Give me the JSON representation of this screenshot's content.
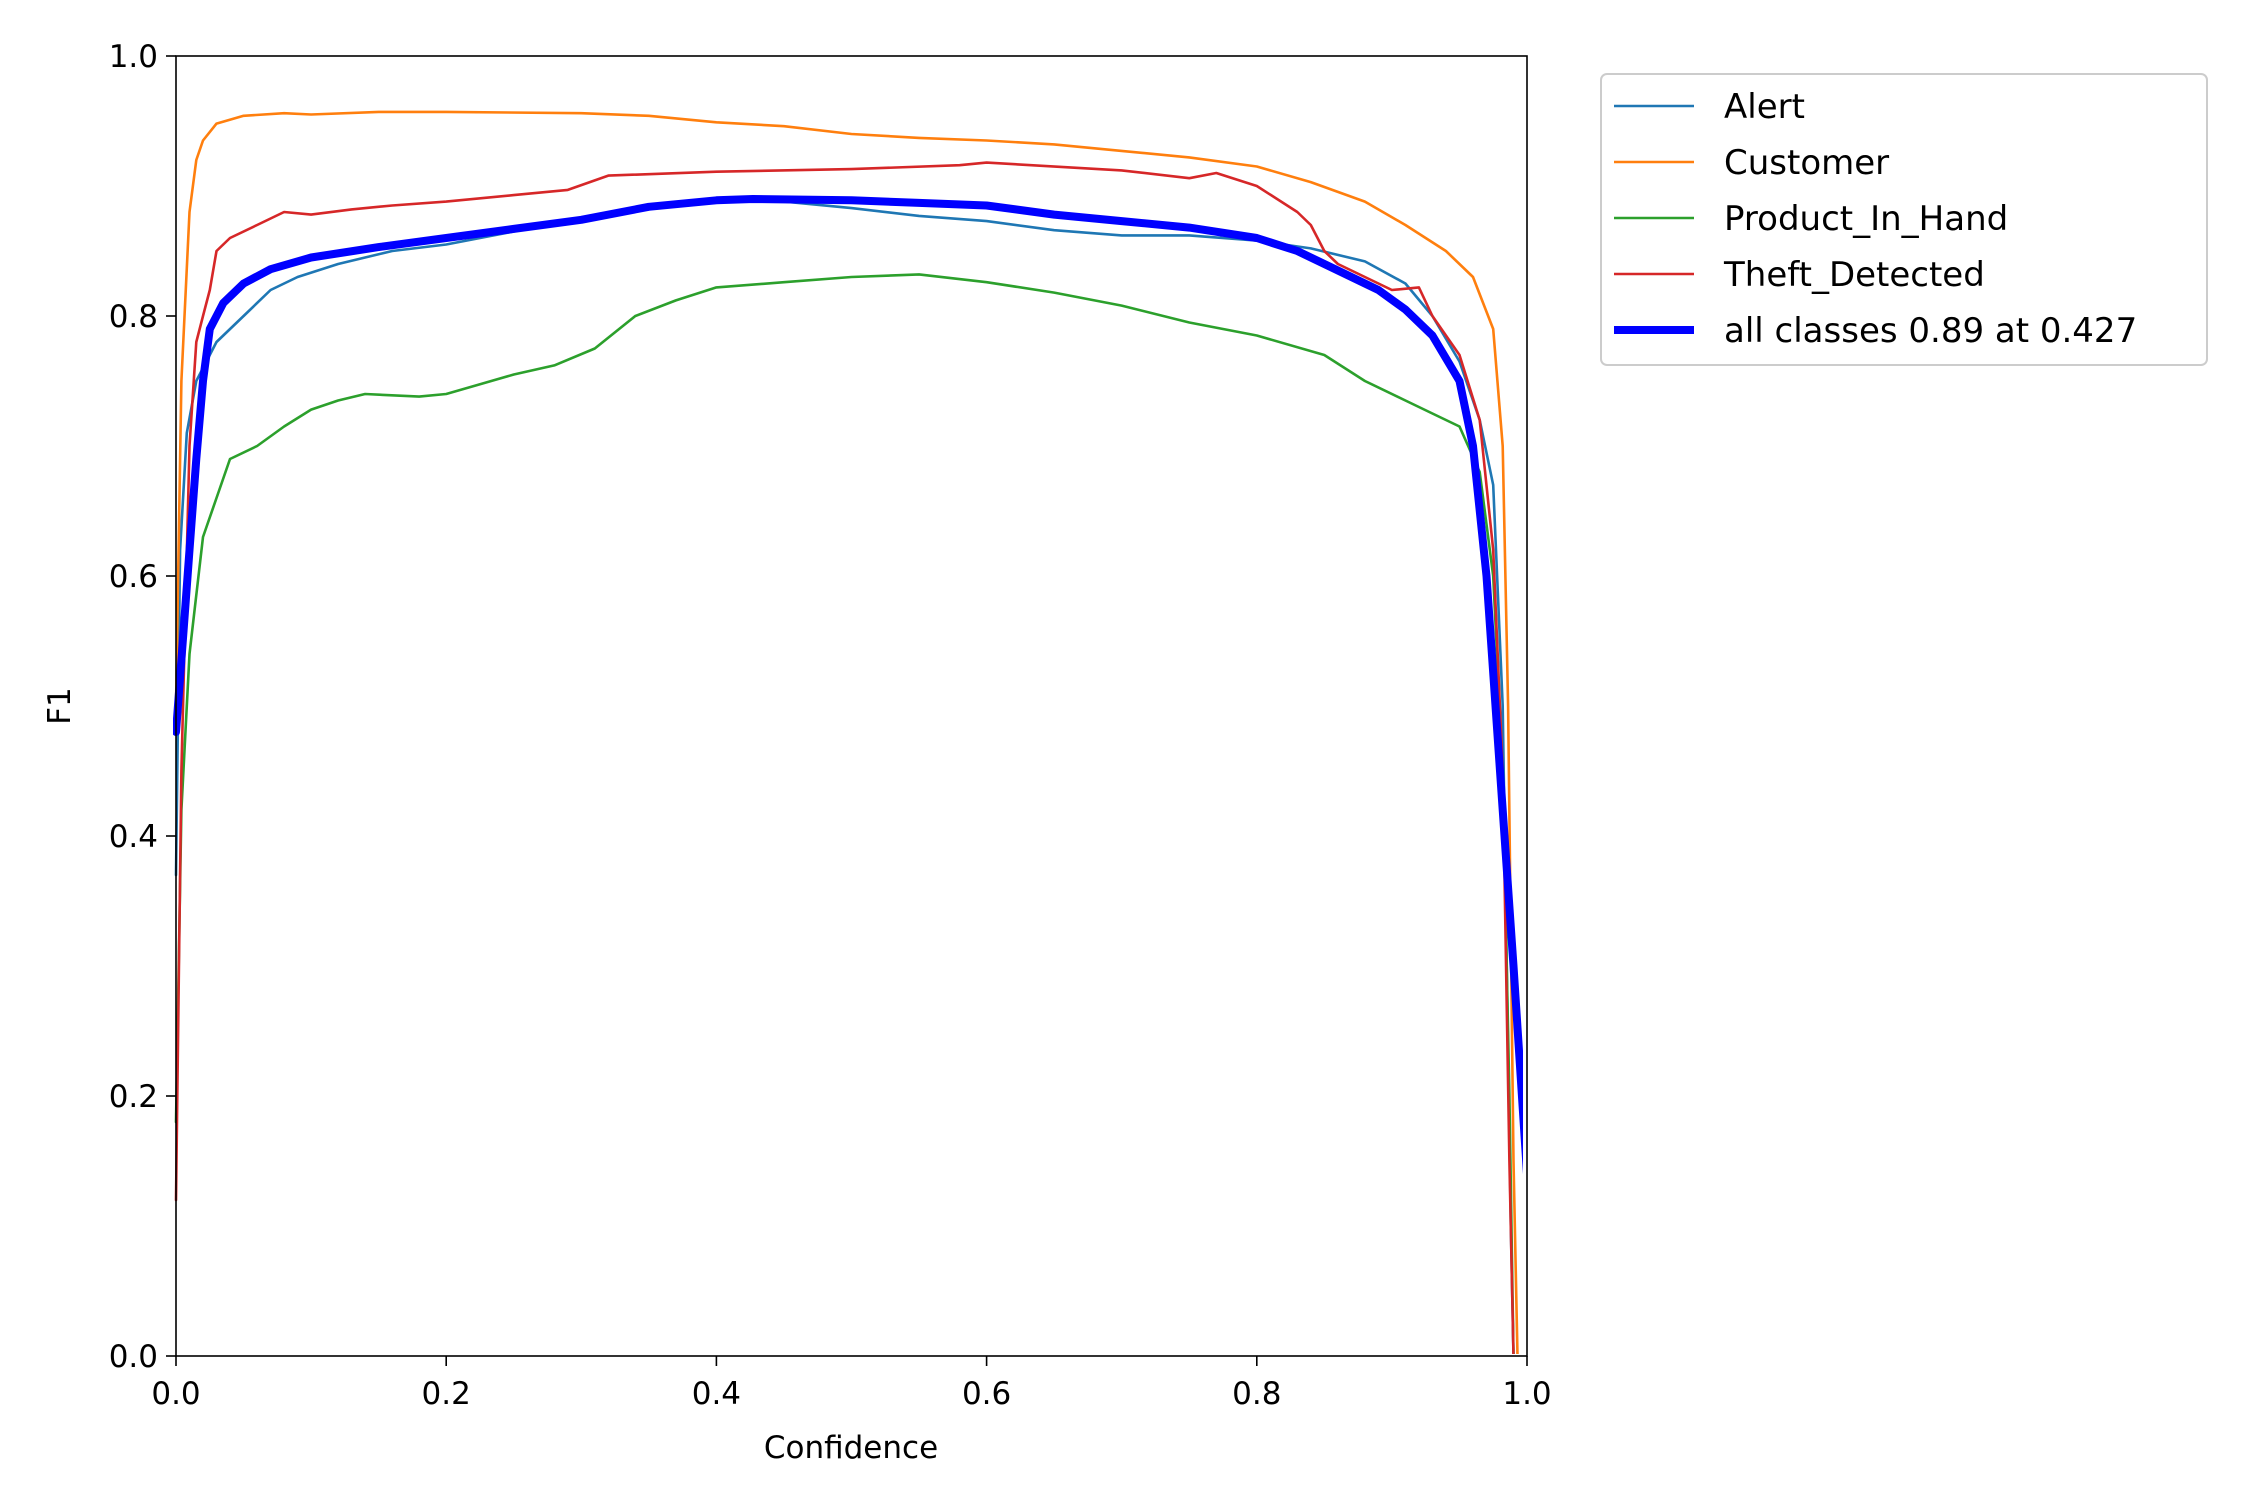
{
  "chart_data": {
    "type": "line",
    "xlabel": "Confidence",
    "ylabel": "F1",
    "xlim": [
      0,
      1
    ],
    "ylim": [
      0,
      1
    ],
    "xticks": [
      "0.0",
      "0.2",
      "0.4",
      "0.6",
      "0.8",
      "1.0"
    ],
    "yticks": [
      "0.0",
      "0.2",
      "0.4",
      "0.6",
      "0.8",
      "1.0"
    ],
    "legend_position": "outside-top-right",
    "grid": false,
    "series": [
      {
        "name": "Alert",
        "color": "#1f77b4",
        "width": "thin",
        "points": [
          [
            0,
            0.37
          ],
          [
            0.003,
            0.62
          ],
          [
            0.008,
            0.71
          ],
          [
            0.015,
            0.75
          ],
          [
            0.03,
            0.78
          ],
          [
            0.05,
            0.8
          ],
          [
            0.07,
            0.82
          ],
          [
            0.09,
            0.83
          ],
          [
            0.12,
            0.84
          ],
          [
            0.16,
            0.85
          ],
          [
            0.2,
            0.855
          ],
          [
            0.25,
            0.865
          ],
          [
            0.3,
            0.875
          ],
          [
            0.35,
            0.885
          ],
          [
            0.4,
            0.89
          ],
          [
            0.45,
            0.888
          ],
          [
            0.5,
            0.883
          ],
          [
            0.55,
            0.877
          ],
          [
            0.6,
            0.873
          ],
          [
            0.65,
            0.866
          ],
          [
            0.7,
            0.862
          ],
          [
            0.75,
            0.862
          ],
          [
            0.8,
            0.858
          ],
          [
            0.84,
            0.852
          ],
          [
            0.88,
            0.842
          ],
          [
            0.91,
            0.825
          ],
          [
            0.93,
            0.8
          ],
          [
            0.95,
            0.765
          ],
          [
            0.965,
            0.72
          ],
          [
            0.975,
            0.67
          ],
          [
            0.982,
            0.5
          ],
          [
            0.988,
            0.1
          ],
          [
            0.99,
            0
          ]
        ]
      },
      {
        "name": "Customer",
        "color": "#ff7f0e",
        "width": "thin",
        "points": [
          [
            0,
            0.5
          ],
          [
            0.004,
            0.75
          ],
          [
            0.01,
            0.88
          ],
          [
            0.015,
            0.92
          ],
          [
            0.02,
            0.935
          ],
          [
            0.03,
            0.948
          ],
          [
            0.05,
            0.954
          ],
          [
            0.08,
            0.956
          ],
          [
            0.1,
            0.955
          ],
          [
            0.15,
            0.957
          ],
          [
            0.2,
            0.957
          ],
          [
            0.3,
            0.956
          ],
          [
            0.35,
            0.954
          ],
          [
            0.4,
            0.949
          ],
          [
            0.45,
            0.946
          ],
          [
            0.5,
            0.94
          ],
          [
            0.55,
            0.937
          ],
          [
            0.6,
            0.935
          ],
          [
            0.65,
            0.932
          ],
          [
            0.7,
            0.927
          ],
          [
            0.75,
            0.922
          ],
          [
            0.8,
            0.915
          ],
          [
            0.84,
            0.903
          ],
          [
            0.88,
            0.888
          ],
          [
            0.91,
            0.87
          ],
          [
            0.94,
            0.85
          ],
          [
            0.96,
            0.83
          ],
          [
            0.975,
            0.79
          ],
          [
            0.982,
            0.7
          ],
          [
            0.986,
            0.5
          ],
          [
            0.99,
            0.15
          ],
          [
            0.993,
            0
          ]
        ]
      },
      {
        "name": "Product_In_Hand",
        "color": "#2ca02c",
        "width": "thin",
        "points": [
          [
            0,
            0.18
          ],
          [
            0.004,
            0.42
          ],
          [
            0.01,
            0.54
          ],
          [
            0.02,
            0.63
          ],
          [
            0.03,
            0.66
          ],
          [
            0.04,
            0.69
          ],
          [
            0.06,
            0.7
          ],
          [
            0.08,
            0.715
          ],
          [
            0.1,
            0.728
          ],
          [
            0.12,
            0.735
          ],
          [
            0.14,
            0.74
          ],
          [
            0.18,
            0.738
          ],
          [
            0.2,
            0.74
          ],
          [
            0.25,
            0.755
          ],
          [
            0.28,
            0.762
          ],
          [
            0.31,
            0.775
          ],
          [
            0.34,
            0.8
          ],
          [
            0.37,
            0.812
          ],
          [
            0.4,
            0.822
          ],
          [
            0.45,
            0.826
          ],
          [
            0.5,
            0.83
          ],
          [
            0.55,
            0.832
          ],
          [
            0.6,
            0.826
          ],
          [
            0.65,
            0.818
          ],
          [
            0.7,
            0.808
          ],
          [
            0.75,
            0.795
          ],
          [
            0.8,
            0.785
          ],
          [
            0.85,
            0.77
          ],
          [
            0.88,
            0.75
          ],
          [
            0.91,
            0.735
          ],
          [
            0.93,
            0.725
          ],
          [
            0.95,
            0.715
          ],
          [
            0.965,
            0.68
          ],
          [
            0.975,
            0.6
          ],
          [
            0.982,
            0.45
          ],
          [
            0.987,
            0.2
          ],
          [
            0.99,
            0
          ]
        ]
      },
      {
        "name": "Theft_Detected",
        "color": "#d62728",
        "width": "thin",
        "points": [
          [
            0,
            0.12
          ],
          [
            0.004,
            0.45
          ],
          [
            0.01,
            0.7
          ],
          [
            0.015,
            0.78
          ],
          [
            0.02,
            0.8
          ],
          [
            0.025,
            0.82
          ],
          [
            0.03,
            0.85
          ],
          [
            0.04,
            0.86
          ],
          [
            0.06,
            0.87
          ],
          [
            0.08,
            0.88
          ],
          [
            0.1,
            0.878
          ],
          [
            0.13,
            0.882
          ],
          [
            0.16,
            0.885
          ],
          [
            0.2,
            0.888
          ],
          [
            0.25,
            0.893
          ],
          [
            0.29,
            0.897
          ],
          [
            0.32,
            0.908
          ],
          [
            0.4,
            0.911
          ],
          [
            0.5,
            0.913
          ],
          [
            0.58,
            0.916
          ],
          [
            0.6,
            0.918
          ],
          [
            0.7,
            0.912
          ],
          [
            0.75,
            0.906
          ],
          [
            0.77,
            0.91
          ],
          [
            0.8,
            0.9
          ],
          [
            0.83,
            0.88
          ],
          [
            0.84,
            0.87
          ],
          [
            0.85,
            0.85
          ],
          [
            0.86,
            0.84
          ],
          [
            0.87,
            0.835
          ],
          [
            0.88,
            0.83
          ],
          [
            0.9,
            0.82
          ],
          [
            0.92,
            0.822
          ],
          [
            0.93,
            0.8
          ],
          [
            0.95,
            0.77
          ],
          [
            0.965,
            0.72
          ],
          [
            0.975,
            0.62
          ],
          [
            0.982,
            0.45
          ],
          [
            0.987,
            0.15
          ],
          [
            0.99,
            0
          ]
        ]
      },
      {
        "name": "all classes 0.89 at 0.427",
        "color": "#0000ff",
        "width": "thick",
        "points": [
          [
            0,
            0.48
          ],
          [
            0.005,
            0.55
          ],
          [
            0.01,
            0.62
          ],
          [
            0.015,
            0.69
          ],
          [
            0.02,
            0.75
          ],
          [
            0.025,
            0.79
          ],
          [
            0.035,
            0.81
          ],
          [
            0.05,
            0.825
          ],
          [
            0.07,
            0.836
          ],
          [
            0.1,
            0.845
          ],
          [
            0.15,
            0.853
          ],
          [
            0.2,
            0.86
          ],
          [
            0.25,
            0.867
          ],
          [
            0.3,
            0.874
          ],
          [
            0.35,
            0.884
          ],
          [
            0.4,
            0.889
          ],
          [
            0.427,
            0.89
          ],
          [
            0.5,
            0.889
          ],
          [
            0.55,
            0.887
          ],
          [
            0.6,
            0.885
          ],
          [
            0.65,
            0.878
          ],
          [
            0.7,
            0.873
          ],
          [
            0.75,
            0.868
          ],
          [
            0.8,
            0.86
          ],
          [
            0.83,
            0.85
          ],
          [
            0.86,
            0.835
          ],
          [
            0.89,
            0.82
          ],
          [
            0.91,
            0.805
          ],
          [
            0.93,
            0.785
          ],
          [
            0.95,
            0.75
          ],
          [
            0.96,
            0.7
          ],
          [
            0.97,
            0.6
          ],
          [
            0.98,
            0.45
          ],
          [
            0.99,
            0.3
          ],
          [
            1.0,
            0.14
          ]
        ]
      }
    ]
  }
}
